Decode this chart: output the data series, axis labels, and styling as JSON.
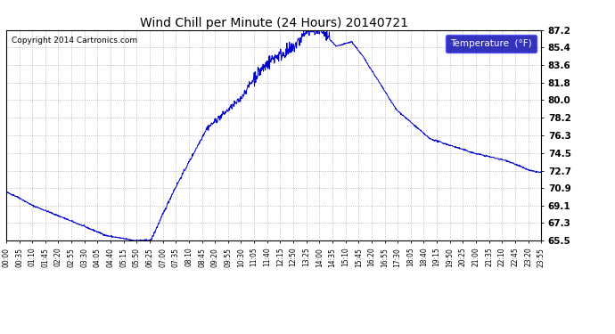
{
  "title": "Wind Chill per Minute (24 Hours) 20140721",
  "copyright_text": "Copyright 2014 Cartronics.com",
  "legend_label": "Temperature  (°F)",
  "line_color": "#0000cc",
  "background_color": "#ffffff",
  "plot_bg_color": "#ffffff",
  "grid_color": "#aaaaaa",
  "legend_bg_color": "#0000aa",
  "legend_text_color": "#ffffff",
  "yticks": [
    65.5,
    67.3,
    69.1,
    70.9,
    72.7,
    74.5,
    76.3,
    78.2,
    80.0,
    81.8,
    83.6,
    85.4,
    87.2
  ],
  "ymin": 65.5,
  "ymax": 87.2,
  "x_tick_labels": [
    "00:00",
    "00:35",
    "01:10",
    "01:45",
    "02:20",
    "02:55",
    "03:30",
    "04:05",
    "04:40",
    "05:15",
    "05:50",
    "06:25",
    "07:00",
    "07:35",
    "08:10",
    "08:45",
    "09:20",
    "09:55",
    "10:30",
    "11:05",
    "11:40",
    "12:15",
    "12:50",
    "13:25",
    "14:00",
    "14:35",
    "15:10",
    "15:45",
    "16:20",
    "16:55",
    "17:30",
    "18:05",
    "18:40",
    "19:15",
    "19:50",
    "20:25",
    "21:00",
    "21:35",
    "22:10",
    "22:45",
    "23:20",
    "23:55"
  ]
}
